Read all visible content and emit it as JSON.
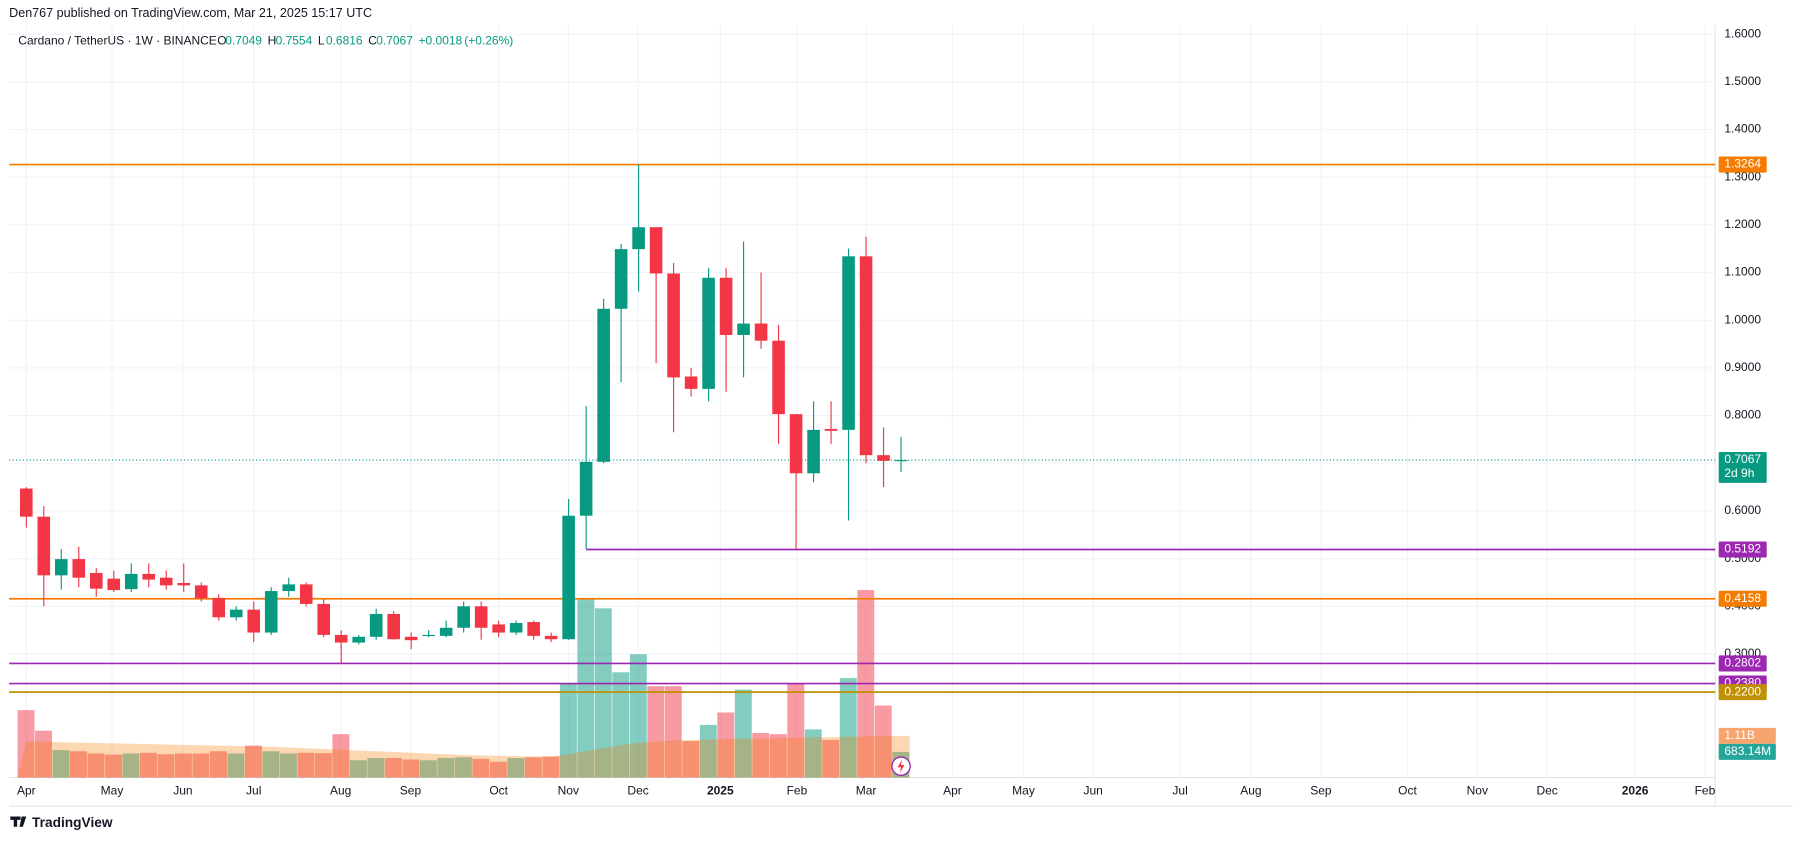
{
  "header": {
    "byline": "Den767 published on TradingView.com, Mar 21, 2025 15:17 UTC"
  },
  "footer": {
    "logo": "TradingView"
  },
  "chart_data": {
    "type": "candlestick",
    "symbol": "Cardano / TetherUS · 1W · BINANCE",
    "ohlc_letters": [
      "O",
      "H",
      "L",
      "C"
    ],
    "change": "+0.0018",
    "change_percent": "(+0.26%)",
    "x": [
      0,
      1,
      2,
      3,
      4,
      5,
      6,
      7,
      8,
      9,
      10,
      11,
      12,
      13,
      14,
      15,
      16,
      17,
      18,
      19,
      20,
      21,
      22,
      23,
      24,
      25,
      26,
      27,
      28,
      29,
      30,
      31,
      32,
      33,
      34,
      35,
      36,
      37,
      38,
      39,
      40,
      41,
      42,
      43,
      44,
      45,
      46,
      47,
      48,
      49,
      50
    ],
    "xlim": [
      -0.98,
      96.54
    ],
    "xticks": [
      {
        "value": 0,
        "label": "Apr"
      },
      {
        "value": 4.9,
        "label": "May"
      },
      {
        "value": 8.95,
        "label": "Jun"
      },
      {
        "value": 13.0,
        "label": "Jul"
      },
      {
        "value": 17.97,
        "label": "Aug"
      },
      {
        "value": 21.96,
        "label": "Sep"
      },
      {
        "value": 27.0,
        "label": "Oct"
      },
      {
        "value": 30.98,
        "label": "Nov"
      },
      {
        "value": 34.97,
        "label": "Dec"
      },
      {
        "value": 39.67,
        "label": "2025"
      },
      {
        "value": 44.05,
        "label": "Feb"
      },
      {
        "value": 48.0,
        "label": "Mar"
      },
      {
        "value": 52.94,
        "label": "Apr"
      },
      {
        "value": 57.0,
        "label": "May"
      },
      {
        "value": 60.98,
        "label": "Jun"
      },
      {
        "value": 65.95,
        "label": "Jul"
      },
      {
        "value": 70.0,
        "label": "Aug"
      },
      {
        "value": 74.0,
        "label": "Sep"
      },
      {
        "value": 78.95,
        "label": "Oct"
      },
      {
        "value": 82.94,
        "label": "Nov"
      },
      {
        "value": 86.93,
        "label": "Dec"
      },
      {
        "value": 91.96,
        "label": "2026"
      },
      {
        "value": 95.95,
        "label": "Feb"
      }
    ],
    "open": [
      0.647,
      0.588,
      0.465,
      0.499,
      0.47,
      0.458,
      0.436,
      0.468,
      0.46,
      0.449,
      0.444,
      0.417,
      0.377,
      0.393,
      0.345,
      0.432,
      0.446,
      0.405,
      0.34,
      0.324,
      0.336,
      0.384,
      0.336,
      0.338,
      0.338,
      0.355,
      0.4,
      0.362,
      0.345,
      0.367,
      0.338,
      0.331,
      0.59,
      0.703,
      1.024,
      1.149,
      1.195,
      1.098,
      0.882,
      0.856,
      1.089,
      0.969,
      0.993,
      0.957,
      0.803,
      0.679,
      0.772,
      0.77,
      1.134,
      0.717,
      0.7049
    ],
    "high": [
      0.65,
      0.61,
      0.52,
      0.525,
      0.48,
      0.475,
      0.49,
      0.49,
      0.475,
      0.49,
      0.45,
      0.425,
      0.4,
      0.41,
      0.44,
      0.46,
      0.45,
      0.415,
      0.35,
      0.34,
      0.395,
      0.39,
      0.345,
      0.35,
      0.37,
      0.41,
      0.41,
      0.37,
      0.37,
      0.37,
      0.345,
      0.625,
      0.82,
      1.045,
      1.16,
      1.326,
      1.195,
      1.12,
      0.9,
      1.11,
      1.11,
      1.165,
      1.1,
      0.99,
      0.8,
      0.83,
      0.83,
      1.15,
      1.175,
      0.775,
      0.7554
    ],
    "low": [
      0.565,
      0.4,
      0.435,
      0.44,
      0.42,
      0.43,
      0.43,
      0.44,
      0.435,
      0.43,
      0.41,
      0.37,
      0.37,
      0.325,
      0.34,
      0.42,
      0.4,
      0.335,
      0.28,
      0.32,
      0.33,
      0.33,
      0.31,
      0.335,
      0.335,
      0.345,
      0.33,
      0.335,
      0.34,
      0.33,
      0.325,
      0.33,
      0.52,
      0.7,
      0.87,
      1.06,
      0.91,
      0.765,
      0.84,
      0.83,
      0.85,
      0.88,
      0.94,
      0.74,
      0.52,
      0.66,
      0.74,
      0.58,
      0.7,
      0.65,
      0.6816
    ],
    "close": [
      0.588,
      0.465,
      0.499,
      0.46,
      0.437,
      0.434,
      0.468,
      0.456,
      0.444,
      0.444,
      0.417,
      0.377,
      0.393,
      0.345,
      0.432,
      0.446,
      0.405,
      0.34,
      0.324,
      0.336,
      0.384,
      0.331,
      0.329,
      0.34,
      0.355,
      0.4,
      0.355,
      0.345,
      0.365,
      0.338,
      0.331,
      0.59,
      0.703,
      1.024,
      1.149,
      1.195,
      1.098,
      0.88,
      0.856,
      1.089,
      0.969,
      0.993,
      0.957,
      0.803,
      0.679,
      0.77,
      0.768,
      1.134,
      0.717,
      0.705,
      0.7067
    ],
    "volume": [
      1793,
      1246,
      730,
      700,
      640,
      610,
      640,
      660,
      620,
      640,
      640,
      700,
      640,
      850,
      700,
      640,
      660,
      650,
      1155,
      460,
      520,
      520,
      480,
      460,
      520,
      540,
      500,
      420,
      520,
      540,
      560,
      2490,
      4740,
      4500,
      2800,
      3280,
      2430,
      2430,
      970,
      1400,
      1730,
      2340,
      1185,
      1155,
      2490,
      1280,
      1000,
      2645,
      4985,
      1915,
      683.14
    ],
    "volume_ma": [
      950,
      950,
      940,
      930,
      920,
      910,
      900,
      890,
      880,
      870,
      860,
      850,
      840,
      830,
      820,
      800,
      780,
      760,
      740,
      720,
      700,
      680,
      660,
      640,
      620,
      600,
      590,
      580,
      570,
      560,
      560,
      620,
      700,
      780,
      860,
      920,
      960,
      990,
      1000,
      1010,
      1020,
      1030,
      1040,
      1050,
      1060,
      1070,
      1075,
      1085,
      1095,
      1105,
      1110
    ],
    "volume_ma_color": "#f57c00",
    "volume_lim": [
      0,
      20000
    ],
    "volume_labels": [
      {
        "value": 1110,
        "label": "1.11B",
        "color": "#f7a46e"
      },
      {
        "value": 683.14,
        "label": "683.14M",
        "color": "#26a69a"
      }
    ],
    "up_color": "#089981",
    "down_color": "#f23645",
    "ylim": [
      0.0408,
      1.6187
    ],
    "yticks": [
      {
        "value": 0.3,
        "label": "0.3000"
      },
      {
        "value": 0.4,
        "label": "0.4000"
      },
      {
        "value": 0.5,
        "label": "0.5000"
      },
      {
        "value": 0.6,
        "label": "0.6000"
      },
      {
        "value": 0.7,
        "label": "0.7000"
      },
      {
        "value": 0.8,
        "label": "0.8000"
      },
      {
        "value": 0.9,
        "label": "0.9000"
      },
      {
        "value": 1.0,
        "label": "1.0000"
      },
      {
        "value": 1.1,
        "label": "1.1000"
      },
      {
        "value": 1.2,
        "label": "1.2000"
      },
      {
        "value": 1.3,
        "label": "1.3000"
      },
      {
        "value": 1.4,
        "label": "1.4000"
      },
      {
        "value": 1.5,
        "label": "1.5000"
      },
      {
        "value": 1.6,
        "label": "1.6000"
      }
    ],
    "grid": true,
    "countdown": "2d 9h",
    "levels": [
      {
        "value": 1.3264,
        "label": "1.3264",
        "color": "#f57c00"
      },
      {
        "value": 0.5192,
        "label": "0.5192",
        "color": "#9c27b0",
        "start_x": 32
      },
      {
        "value": 0.4158,
        "label": "0.4158",
        "color": "#f57c00"
      },
      {
        "value": 0.2802,
        "label": "0.2802",
        "color": "#9c27b0"
      },
      {
        "value": 0.238,
        "label": "0.2380",
        "color": "#9c27b0"
      },
      {
        "value": 0.22,
        "label": "0.2200",
        "color": "#bf9000"
      }
    ]
  }
}
